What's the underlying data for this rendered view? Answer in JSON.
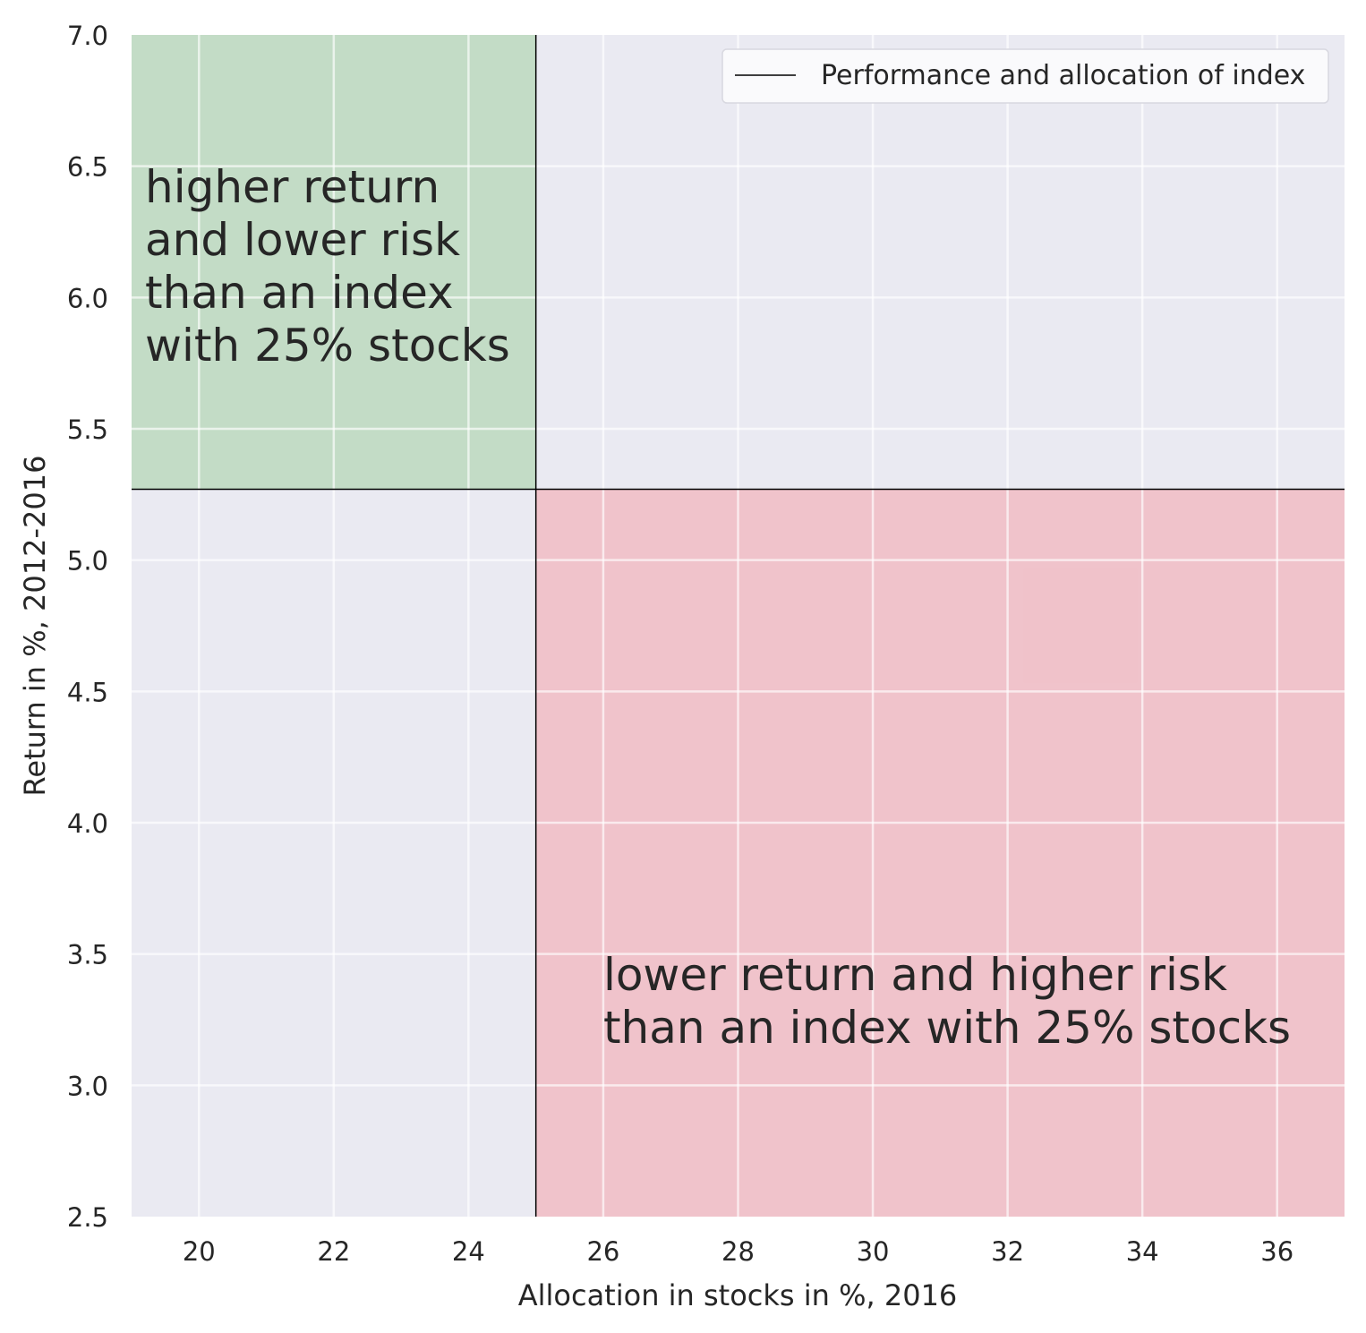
{
  "chart_data": {
    "type": "scatter",
    "title": "",
    "xlabel": "Allocation in stocks in %, 2016",
    "ylabel": "Return in %, 2012-2016",
    "xlim": [
      19,
      37
    ],
    "ylim": [
      2.5,
      7.0
    ],
    "xticks": [
      20,
      22,
      24,
      26,
      28,
      30,
      32,
      34,
      36
    ],
    "yticks": [
      2.5,
      3.0,
      3.5,
      4.0,
      4.5,
      5.0,
      5.5,
      6.0,
      6.5,
      7.0
    ],
    "xtick_labels": [
      "20",
      "22",
      "24",
      "26",
      "28",
      "30",
      "32",
      "34",
      "36"
    ],
    "ytick_labels": [
      "2.5",
      "3.0",
      "3.5",
      "4.0",
      "4.5",
      "5.0",
      "5.5",
      "6.0",
      "6.5",
      "7.0"
    ],
    "grid": true,
    "legend_position": "top-right",
    "legend": [
      "Performance and allocation of index"
    ],
    "index_lines": {
      "x": 25,
      "y": 5.27
    },
    "regions": [
      {
        "name": "favorable",
        "x": [
          19,
          25
        ],
        "y": [
          5.27,
          7.0
        ],
        "color": "#a8d2a8"
      },
      {
        "name": "unfavorable",
        "x": [
          25,
          37
        ],
        "y": [
          2.5,
          5.27
        ],
        "color": "#f4a8b0"
      }
    ],
    "annotations": [
      {
        "lines": [
          "higher return",
          "and lower risk",
          "than an index",
          "with 25% stocks"
        ],
        "x": 19.2,
        "y": 6.42
      },
      {
        "lines": [
          "lower return and higher risk",
          "than an index with 25% stocks"
        ],
        "x": 26.0,
        "y": 3.42
      }
    ],
    "colors": {
      "background": "#eaeaf2",
      "grid": "#ffffff",
      "line": "#000000"
    }
  }
}
